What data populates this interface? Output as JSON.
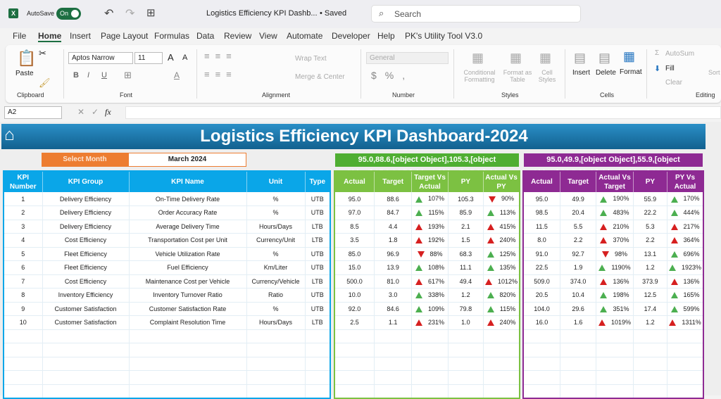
{
  "app": {
    "autosave": "AutoSave",
    "toggle": "On",
    "doc_title": "Logistics Efficiency KPI Dashb...",
    "saved": "• Saved",
    "search_placeholder": "Search"
  },
  "menu": [
    "File",
    "Home",
    "Insert",
    "Page Layout",
    "Formulas",
    "Data",
    "Review",
    "View",
    "Automate",
    "Developer",
    "Help",
    "PK's Utility Tool V3.0"
  ],
  "ribbon": {
    "paste": "Paste",
    "clipboard": "Clipboard",
    "font_name": "Aptos Narrow",
    "font_size": "11",
    "font": "Font",
    "wrap": "Wrap Text",
    "merge": "Merge & Center",
    "alignment": "Alignment",
    "number_format": "General",
    "number": "Number",
    "cond": "Conditional Formatting",
    "fmt_table": "Format as Table",
    "cell_styles": "Cell Styles",
    "styles": "Styles",
    "insert": "Insert",
    "delete": "Delete",
    "format": "Format",
    "cells": "Cells",
    "autosum": "AutoSum",
    "fill": "Fill",
    "clear": "Clear",
    "sort": "Sort & Filter",
    "editing": "Editing"
  },
  "formula_bar": {
    "name_box": "A2",
    "fx": "fx",
    "value": ""
  },
  "dashboard": {
    "title": "Logistics Efficiency KPI Dashboard-2024",
    "select_month_label": "Select Month",
    "month": "March 2024",
    "mtd": [
      [
        "95.0",
        "88.6",
        {
          "v": "107%",
          "i": "up-good"
        },
        "105.3",
        {
          "v": "90%",
          "i": "down-bad"
        }
      ],
      [
        "97.0",
        "84.7",
        {
          "v": "115%",
          "i": "up-good"
        },
        "85.9",
        {
          "v": "113%",
          "i": "up-good"
        }
      ],
      [
        "8.5",
        "4.4",
        {
          "v": "193%",
          "i": "up-bad"
        },
        "2.1",
        {
          "v": "415%",
          "i": "up-bad"
        }
      ],
      [
        "3.5",
        "1.8",
        {
          "v": "192%",
          "i": "up-bad"
        },
        "1.5",
        {
          "v": "240%",
          "i": "up-bad"
        }
      ],
      [
        "85.0",
        "96.9",
        {
          "v": "88%",
          "i": "down-bad"
        },
        "68.3",
        {
          "v": "125%",
          "i": "up-good"
        }
      ],
      [
        "15.0",
        "13.9",
        {
          "v": "108%",
          "i": "up-good"
        },
        "11.1",
        {
          "v": "135%",
          "i": "up-good"
        }
      ],
      [
        "500.0",
        "81.0",
        {
          "v": "617%",
          "i": "up-bad"
        },
        "49.4",
        {
          "v": "1012%",
          "i": "up-bad"
        }
      ],
      [
        "10.0",
        "3.0",
        {
          "v": "338%",
          "i": "up-good"
        },
        "1.2",
        {
          "v": "820%",
          "i": "up-good"
        }
      ],
      [
        "92.0",
        "84.6",
        {
          "v": "109%",
          "i": "up-good"
        },
        "79.8",
        {
          "v": "115%",
          "i": "up-good"
        }
      ],
      [
        "2.5",
        "1.1",
        {
          "v": "231%",
          "i": "up-bad"
        },
        "1.0",
        {
          "v": "240%",
          "i": "up-bad"
        }
      ]
    ],
    "ytd": [
      [
        "95.0",
        "49.9",
        {
          "v": "190%",
          "i": "up-good"
        },
        "55.9",
        {
          "v": "170%",
          "i": "up-good"
        }
      ],
      [
        "98.5",
        "20.4",
        {
          "v": "483%",
          "i": "up-good"
        },
        "22.2",
        {
          "v": "444%",
          "i": "up-good"
        }
      ],
      [
        "11.5",
        "5.5",
        {
          "v": "210%",
          "i": "up-bad"
        },
        "5.3",
        {
          "v": "217%",
          "i": "up-bad"
        }
      ],
      [
        "8.0",
        "2.2",
        {
          "v": "370%",
          "i": "up-bad"
        },
        "2.2",
        {
          "v": "364%",
          "i": "up-bad"
        }
      ],
      [
        "91.0",
        "92.7",
        {
          "v": "98%",
          "i": "down-bad"
        },
        "13.1",
        {
          "v": "696%",
          "i": "up-good"
        }
      ],
      [
        "22.5",
        "1.9",
        {
          "v": "1190%",
          "i": "up-good"
        },
        "1.2",
        {
          "v": "1923%",
          "i": "up-good"
        }
      ],
      [
        "509.0",
        "374.0",
        {
          "v": "136%",
          "i": "up-bad"
        },
        "373.9",
        {
          "v": "136%",
          "i": "up-bad"
        }
      ],
      [
        "20.5",
        "10.4",
        {
          "v": "198%",
          "i": "up-good"
        },
        "12.5",
        {
          "v": "165%",
          "i": "up-good"
        }
      ],
      [
        "104.0",
        "29.6",
        {
          "v": "351%",
          "i": "up-good"
        },
        "17.4",
        {
          "v": "599%",
          "i": "up-good"
        }
      ],
      [
        "16.0",
        "1.6",
        {
          "v": "1019%",
          "i": "up-bad"
        },
        "1.2",
        {
          "v": "1311%",
          "i": "up-bad"
        }
      ]
    ],
    "colors": {
      "blue": "#0aa6e8",
      "green": "#7cc142",
      "purple": "#8e2a93",
      "orange": "#ed7d31"
    },
    "kpi_headers": [
      "KPI Number",
      "KPI Group",
      "KPI Name",
      "Unit",
      "Type"
    ],
    "mtd_headers": [
      "Actual",
      "Target",
      "Target Vs Actual",
      "PY",
      "Actual Vs PY"
    ],
    "ytd_headers": [
      "Actual",
      "Target",
      "Actual Vs Target",
      "PY",
      "PY Vs Actual"
    ],
    "kpis": [
      [
        "1",
        "Delivery Efficiency",
        "On-Time Delivery Rate",
        "%",
        "UTB"
      ],
      [
        "2",
        "Delivery Efficiency",
        "Order Accuracy Rate",
        "%",
        "UTB"
      ],
      [
        "3",
        "Delivery Efficiency",
        "Average Delivery Time",
        "Hours/Days",
        "LTB"
      ],
      [
        "4",
        "Cost Efficiency",
        "Transportation Cost per Unit",
        "Currency/Unit",
        "LTB"
      ],
      [
        "5",
        "Fleet Efficiency",
        "Vehicle Utilization Rate",
        "%",
        "UTB"
      ],
      [
        "6",
        "Fleet Efficiency",
        "Fuel Efficiency",
        "Km/Liter",
        "UTB"
      ],
      [
        "7",
        "Cost Efficiency",
        "Maintenance Cost per Vehicle",
        "Currency/Vehicle",
        "LTB"
      ],
      [
        "8",
        "Inventory Efficiency",
        "Inventory Turnover Ratio",
        "Ratio",
        "UTB"
      ],
      [
        "9",
        "Customer Satisfaction",
        "Customer Satisfaction Rate",
        "%",
        "UTB"
      ],
      [
        "10",
        "Customer Satisfaction",
        "Complaint Resolution Time",
        "Hours/Days",
        "LTB"
      ]
    ]
  }
}
